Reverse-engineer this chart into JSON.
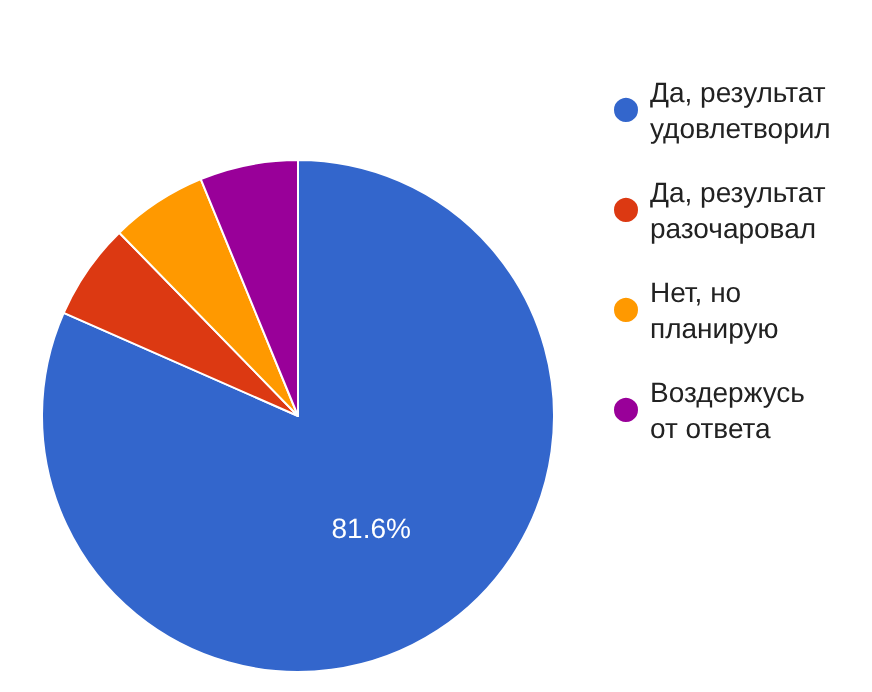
{
  "chart_data": {
    "type": "pie",
    "categories": [
      "Да, результат удовлетворил",
      "Да, результат разочаровал",
      "Нет, но планирую",
      "Воздержусь от ответа"
    ],
    "values": [
      81.6,
      6.1,
      6.1,
      6.2
    ],
    "colors": [
      "#3366cc",
      "#dc3912",
      "#ff9900",
      "#990099"
    ],
    "value_labels": [
      "81.6%",
      null,
      null,
      null
    ],
    "legend": "right"
  }
}
